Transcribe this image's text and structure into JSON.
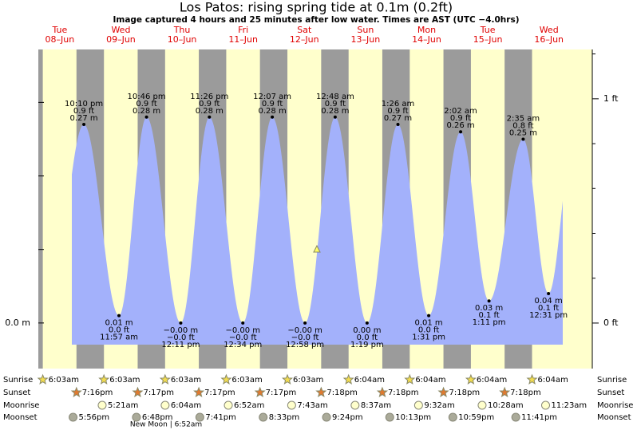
{
  "chart_data": {
    "type": "tide",
    "title": "Los Patos: rising  spring tide at 0.1m (0.2ft)",
    "subtitle": "Image captured 4 hours and 25 minutes after low water. Times are AST (UTC −4.0hrs)",
    "categories": [
      "Tue",
      "Wed",
      "Thu",
      "Fri",
      "Sat",
      "Sun",
      "Mon",
      "Tue",
      "Wed"
    ],
    "dates": [
      "08–Jun",
      "09–Jun",
      "10–Jun",
      "11–Jun",
      "12–Jun",
      "13–Jun",
      "14–Jun",
      "15–Jun",
      "16–Jun"
    ],
    "tides": {
      "times": [
        "10:10 pm",
        "11:57 am",
        "10:46 pm",
        "12:11 pm",
        "11:26 pm",
        "12:34 pm",
        "12:07 am",
        "12:58 pm",
        "12:48 am",
        "1:19 pm",
        "1:26 am",
        "1:31 pm",
        "2:02 am",
        "1:11 pm",
        "2:35 am",
        "12:31 pm"
      ],
      "values": [
        0.27,
        0.01,
        0.28,
        0,
        0.28,
        0,
        0.28,
        0,
        0.28,
        0,
        0.27,
        0.01,
        0.26,
        0.03,
        0.25,
        0.04
      ],
      "value_labels": [
        "0.27 m",
        "0.01 m",
        "0.28 m",
        "−0.00 m",
        "0.28 m",
        "−0.00 m",
        "0.28 m",
        "−0.00 m",
        "0.28 m",
        "0.00 m",
        "0.27 m",
        "0.01 m",
        "0.26 m",
        "0.03 m",
        "0.25 m",
        "0.04 m"
      ],
      "ft_labels": [
        "0.9 ft",
        "0.0 ft",
        "0.9 ft",
        "−0.0 ft",
        "0.9 ft",
        "−0.0 ft",
        "0.9 ft",
        "−0.0 ft",
        "0.9 ft",
        "0.0 ft",
        "0.9 ft",
        "0.0 ft",
        "0.9 ft",
        "0.1 ft",
        "0.8 ft",
        "0.1 ft"
      ],
      "color": "#a3b1fb"
    },
    "ylim": [
      -0.062,
      0.372
    ],
    "yticks": [
      {
        "value": 0,
        "label": "0.0 m"
      },
      0.1,
      0.2,
      0.3
    ],
    "y2lim": [
      -0.203,
      1.22
    ],
    "y2ticks": [
      {
        "value": 0,
        "label": "0 ft"
      },
      {
        "value": 1,
        "label": "1 ft"
      }
    ],
    "y2minor": [
      0.2,
      0.4,
      0.6,
      0.8,
      1.2
    ],
    "day_color": "#ffffcc",
    "night_color": "#9b9b9b",
    "astro": [
      {
        "label": "Sunrise",
        "times": [
          "6:03am",
          "6:03am",
          "6:03am",
          "6:03am",
          "6:03am",
          "6:04am",
          "6:04am",
          "6:04am",
          "6:04am"
        ]
      },
      {
        "label": "Sunset",
        "times": [
          "7:16pm",
          "7:17pm",
          "7:17pm",
          "7:17pm",
          "7:18pm",
          "7:18pm",
          "7:18pm",
          "7:18pm",
          null
        ]
      },
      {
        "label": "Moonrise",
        "times": [
          null,
          "5:21am",
          "6:04am",
          "6:52am",
          "7:43am",
          "8:37am",
          "9:32am",
          "10:28am",
          "11:23am"
        ]
      },
      {
        "label": "Moonset",
        "times": [
          "5:56pm",
          "6:48pm",
          "7:41pm",
          "8:33pm",
          "9:24pm",
          "10:13pm",
          "10:59pm",
          "11:41pm",
          null
        ]
      }
    ],
    "new_moon": "New Moon | 6:52am"
  }
}
